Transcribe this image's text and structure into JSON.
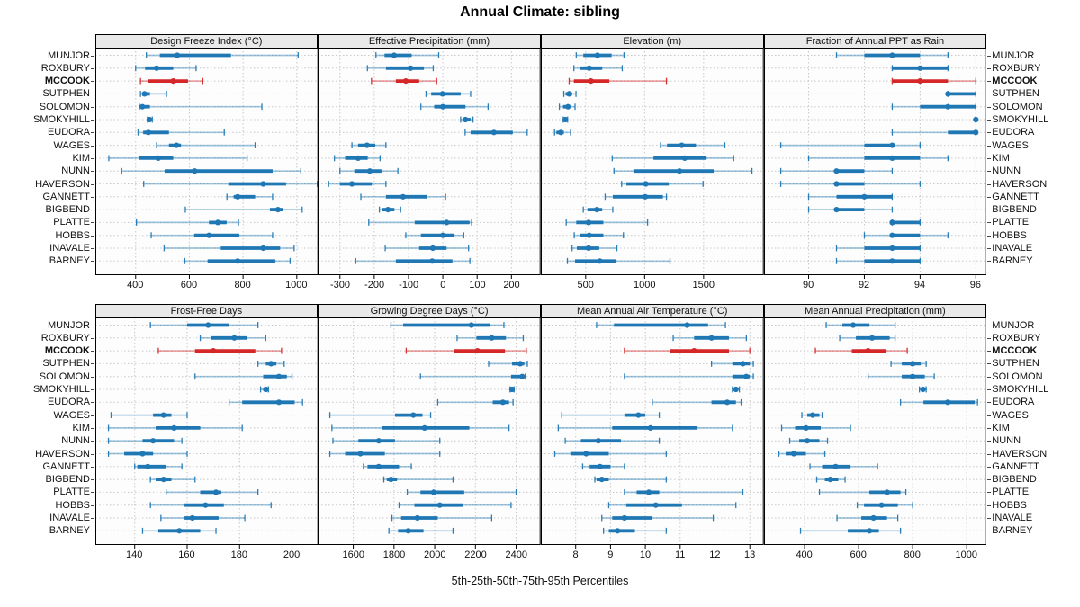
{
  "title": "Annual Climate: sibling",
  "footer": "5th-25th-50th-75th-95th Percentiles",
  "highlight_station": "MCCOOK",
  "colors": {
    "series_blue": "#1f77b4",
    "series_red": "#d62728",
    "header_bg": "#e9e9e9",
    "grid": "#c8c8c8",
    "panel_border": "#000000"
  },
  "stations": [
    "MUNJOR",
    "ROXBURY",
    "MCCOOK",
    "SUTPHEN",
    "SOLOMON",
    "SMOKYHILL",
    "EUDORA",
    "WAGES",
    "KIM",
    "NUNN",
    "HAVERSON",
    "GANNETT",
    "BIGBEND",
    "PLATTE",
    "HOBBS",
    "INAVALE",
    "BARNEY"
  ],
  "percentile_labels": [
    "5th",
    "25th",
    "50th",
    "75th",
    "95th"
  ],
  "chart_data": [
    {
      "type": "scatter",
      "subtype": "percentile-intervals",
      "row": 0,
      "col": 0,
      "panel": "Design Freeze Index (°C)",
      "xlim": [
        250,
        1080
      ],
      "xticks": [
        400,
        600,
        800,
        1000
      ],
      "values": [
        [
          440,
          490,
          555,
          755,
          1005
        ],
        [
          400,
          435,
          478,
          540,
          625
        ],
        [
          418,
          447,
          540,
          595,
          650
        ],
        [
          418,
          425,
          433,
          453,
          515
        ],
        [
          414,
          418,
          425,
          453,
          870
        ],
        [
          444,
          448,
          451,
          456,
          462
        ],
        [
          409,
          428,
          447,
          524,
          730
        ],
        [
          478,
          524,
          552,
          569,
          845
        ],
        [
          300,
          414,
          484,
          540,
          815
        ],
        [
          348,
          508,
          620,
          910,
          1015
        ],
        [
          430,
          745,
          875,
          960,
          1078
        ],
        [
          740,
          765,
          780,
          845,
          910
        ],
        [
          585,
          900,
          930,
          950,
          1020
        ],
        [
          403,
          673,
          706,
          739,
          783
        ],
        [
          458,
          618,
          673,
          786,
          910
        ],
        [
          506,
          717,
          875,
          938,
          990
        ],
        [
          583,
          668,
          780,
          920,
          975
        ]
      ]
    },
    {
      "type": "scatter",
      "subtype": "percentile-intervals",
      "row": 0,
      "col": 1,
      "panel": "Effective Precipitation (mm)",
      "xlim": [
        -365,
        285
      ],
      "xticks": [
        -300,
        -200,
        -100,
        0,
        100,
        200
      ],
      "values": [
        [
          -195,
          -170,
          -142,
          -91,
          -12
        ],
        [
          -220,
          -166,
          -94,
          -55,
          -28
        ],
        [
          -208,
          -137,
          -108,
          -69,
          -18
        ],
        [
          -49,
          -34,
          -1,
          52,
          81
        ],
        [
          -64,
          -25,
          0,
          66,
          132
        ],
        [
          52,
          59,
          66,
          81,
          88
        ],
        [
          65,
          81,
          149,
          204,
          246
        ],
        [
          -265,
          -247,
          -221,
          -197,
          -166
        ],
        [
          -316,
          -285,
          -247,
          -219,
          -183
        ],
        [
          -300,
          -258,
          -213,
          -179,
          -131
        ],
        [
          -333,
          -300,
          -265,
          -207,
          -166
        ],
        [
          -239,
          -166,
          -116,
          -47,
          8
        ],
        [
          -185,
          -176,
          -160,
          -141,
          -123
        ],
        [
          -216,
          -82,
          11,
          78,
          84
        ],
        [
          -108,
          -64,
          0,
          34,
          61
        ],
        [
          -168,
          -69,
          -29,
          11,
          75
        ],
        [
          -254,
          -137,
          -31,
          28,
          79
        ]
      ]
    },
    {
      "type": "scatter",
      "subtype": "percentile-intervals",
      "row": 0,
      "col": 2,
      "panel": "Elevation (m)",
      "xlim": [
        120,
        2010
      ],
      "xticks": [
        500,
        1000,
        1500
      ],
      "values": [
        [
          420,
          480,
          600,
          720,
          825
        ],
        [
          400,
          450,
          530,
          640,
          810
        ],
        [
          360,
          400,
          545,
          700,
          1185
        ],
        [
          315,
          330,
          360,
          385,
          418
        ],
        [
          277,
          308,
          350,
          368,
          410
        ],
        [
          310,
          320,
          328,
          338,
          347
        ],
        [
          236,
          252,
          290,
          315,
          372
        ],
        [
          1135,
          1190,
          1315,
          1435,
          1680
        ],
        [
          725,
          1075,
          1340,
          1525,
          1755
        ],
        [
          740,
          905,
          1295,
          1585,
          1910
        ],
        [
          805,
          845,
          1010,
          1205,
          1495
        ],
        [
          665,
          730,
          1005,
          1155,
          1185
        ],
        [
          480,
          515,
          595,
          640,
          730
        ],
        [
          335,
          420,
          525,
          650,
          1025
        ],
        [
          403,
          450,
          530,
          650,
          820
        ],
        [
          385,
          425,
          525,
          615,
          765
        ],
        [
          345,
          410,
          620,
          755,
          1215
        ]
      ]
    },
    {
      "type": "scatter",
      "subtype": "percentile-intervals",
      "row": 0,
      "col": 3,
      "panel": "Fraction of Annual PPT as Rain",
      "xlim": [
        88.4,
        96.4
      ],
      "xticks": [
        90,
        92,
        94,
        96
      ],
      "values": [
        [
          91,
          92,
          93,
          94,
          95
        ],
        [
          93,
          93,
          94,
          95,
          95
        ],
        [
          93,
          93,
          94,
          95,
          96
        ],
        [
          95,
          95,
          95,
          96,
          96
        ],
        [
          93,
          94,
          95,
          96,
          96
        ],
        [
          96,
          96,
          96,
          96,
          96
        ],
        [
          93,
          95,
          96,
          96,
          96
        ],
        [
          89,
          92,
          93,
          93,
          94
        ],
        [
          90,
          92,
          93,
          94,
          95
        ],
        [
          89,
          91,
          91,
          92,
          93
        ],
        [
          89,
          91,
          91,
          92,
          94
        ],
        [
          90,
          91,
          92,
          93,
          93
        ],
        [
          90,
          91,
          91,
          92,
          93
        ],
        [
          93,
          93,
          93,
          94,
          94
        ],
        [
          92,
          93,
          93,
          94,
          95
        ],
        [
          91,
          92,
          93,
          94,
          94
        ],
        [
          91,
          92,
          93,
          94,
          94
        ]
      ]
    },
    {
      "type": "scatter",
      "subtype": "percentile-intervals",
      "row": 1,
      "col": 0,
      "panel": "Frost-Free Days",
      "xlim": [
        125,
        210
      ],
      "xticks": [
        140,
        160,
        180,
        200
      ],
      "values": [
        [
          146,
          160,
          168,
          176,
          187
        ],
        [
          165,
          169,
          178,
          183,
          190
        ],
        [
          149,
          163,
          170,
          186,
          196
        ],
        [
          187,
          190,
          192,
          194,
          197
        ],
        [
          163,
          189,
          195,
          198,
          200
        ],
        [
          188,
          189,
          190,
          190,
          191
        ],
        [
          176,
          181,
          195,
          201,
          204
        ],
        [
          131,
          147,
          151,
          154,
          160
        ],
        [
          130,
          148,
          155,
          165,
          181
        ],
        [
          130,
          143,
          147,
          155,
          158
        ],
        [
          130,
          136,
          143,
          147,
          160
        ],
        [
          140,
          141,
          145,
          152,
          158
        ],
        [
          146,
          148,
          151,
          154,
          163
        ],
        [
          152,
          165,
          171,
          173,
          187
        ],
        [
          146,
          159,
          167,
          174,
          192
        ],
        [
          150,
          159,
          162,
          172,
          182
        ],
        [
          143,
          149,
          157,
          165,
          171
        ]
      ]
    },
    {
      "type": "scatter",
      "subtype": "percentile-intervals",
      "row": 1,
      "col": 1,
      "panel": "Growing Degree Days (°C)",
      "xlim": [
        1425,
        2520
      ],
      "xticks": [
        1600,
        1800,
        2000,
        2200,
        2400
      ],
      "values": [
        [
          1785,
          1845,
          2180,
          2270,
          2340
        ],
        [
          2110,
          2205,
          2280,
          2350,
          2435
        ],
        [
          1860,
          2095,
          2210,
          2345,
          2450
        ],
        [
          2265,
          2380,
          2420,
          2440,
          2455
        ],
        [
          1930,
          2375,
          2430,
          2440,
          2445
        ],
        [
          2370,
          2375,
          2380,
          2385,
          2390
        ],
        [
          2015,
          2285,
          2335,
          2365,
          2385
        ],
        [
          1485,
          1805,
          1895,
          1940,
          1980
        ],
        [
          1495,
          1740,
          1950,
          2170,
          2365
        ],
        [
          1500,
          1625,
          1725,
          1805,
          2025
        ],
        [
          1485,
          1560,
          1635,
          1755,
          2025
        ],
        [
          1650,
          1670,
          1725,
          1825,
          1885
        ],
        [
          1750,
          1765,
          1785,
          1815,
          2090
        ],
        [
          1865,
          1930,
          1995,
          2145,
          2400
        ],
        [
          1825,
          1900,
          2025,
          2140,
          2375
        ],
        [
          1790,
          1835,
          1915,
          2015,
          2280
        ],
        [
          1775,
          1820,
          1870,
          1945,
          2090
        ]
      ]
    },
    {
      "type": "scatter",
      "subtype": "percentile-intervals",
      "row": 1,
      "col": 2,
      "panel": "Mean Annual Air Temperature (°C)",
      "xlim": [
        7.0,
        13.4
      ],
      "xticks": [
        8,
        9,
        10,
        11,
        12,
        13
      ],
      "values": [
        [
          8.6,
          9.1,
          11.2,
          11.8,
          12.3
        ],
        [
          10.8,
          11.4,
          11.9,
          12.4,
          12.9
        ],
        [
          9.4,
          10.7,
          11.4,
          12.4,
          13.0
        ],
        [
          11.9,
          12.5,
          12.8,
          13.0,
          13.1
        ],
        [
          9.4,
          12.5,
          12.9,
          13.0,
          13.1
        ],
        [
          12.5,
          12.55,
          12.6,
          12.65,
          12.7
        ],
        [
          10.2,
          11.9,
          12.35,
          12.6,
          12.75
        ],
        [
          7.6,
          9.4,
          9.8,
          10.0,
          10.4
        ],
        [
          7.5,
          9.05,
          10.15,
          11.5,
          12.5
        ],
        [
          7.7,
          8.15,
          8.65,
          9.3,
          10.4
        ],
        [
          7.4,
          7.85,
          8.3,
          8.95,
          10.6
        ],
        [
          8.2,
          8.4,
          8.7,
          9.0,
          9.4
        ],
        [
          8.55,
          8.6,
          8.75,
          8.95,
          10.6
        ],
        [
          9.4,
          9.75,
          10.1,
          10.4,
          12.8
        ],
        [
          8.95,
          9.45,
          10.3,
          11.05,
          12.6
        ],
        [
          8.75,
          9.05,
          9.4,
          10.2,
          11.95
        ],
        [
          8.8,
          8.95,
          9.2,
          9.7,
          10.6
        ]
      ]
    },
    {
      "type": "scatter",
      "subtype": "percentile-intervals",
      "row": 1,
      "col": 3,
      "panel": "Mean Annual Precipitation (mm)",
      "xlim": [
        250,
        1075
      ],
      "xticks": [
        400,
        600,
        800,
        1000
      ],
      "values": [
        [
          480,
          540,
          580,
          640,
          735
        ],
        [
          530,
          590,
          650,
          715,
          735
        ],
        [
          440,
          575,
          635,
          700,
          780
        ],
        [
          720,
          760,
          800,
          830,
          850
        ],
        [
          635,
          760,
          800,
          845,
          880
        ],
        [
          825,
          833,
          838,
          845,
          850
        ],
        [
          755,
          840,
          930,
          1030,
          1040
        ],
        [
          390,
          410,
          430,
          455,
          465
        ],
        [
          315,
          365,
          405,
          460,
          570
        ],
        [
          345,
          380,
          410,
          455,
          485
        ],
        [
          305,
          330,
          360,
          405,
          475
        ],
        [
          420,
          465,
          515,
          570,
          670
        ],
        [
          445,
          475,
          495,
          525,
          550
        ],
        [
          455,
          640,
          705,
          755,
          775
        ],
        [
          595,
          620,
          685,
          745,
          800
        ],
        [
          520,
          610,
          655,
          705,
          745
        ],
        [
          385,
          560,
          640,
          675,
          755
        ]
      ]
    }
  ]
}
